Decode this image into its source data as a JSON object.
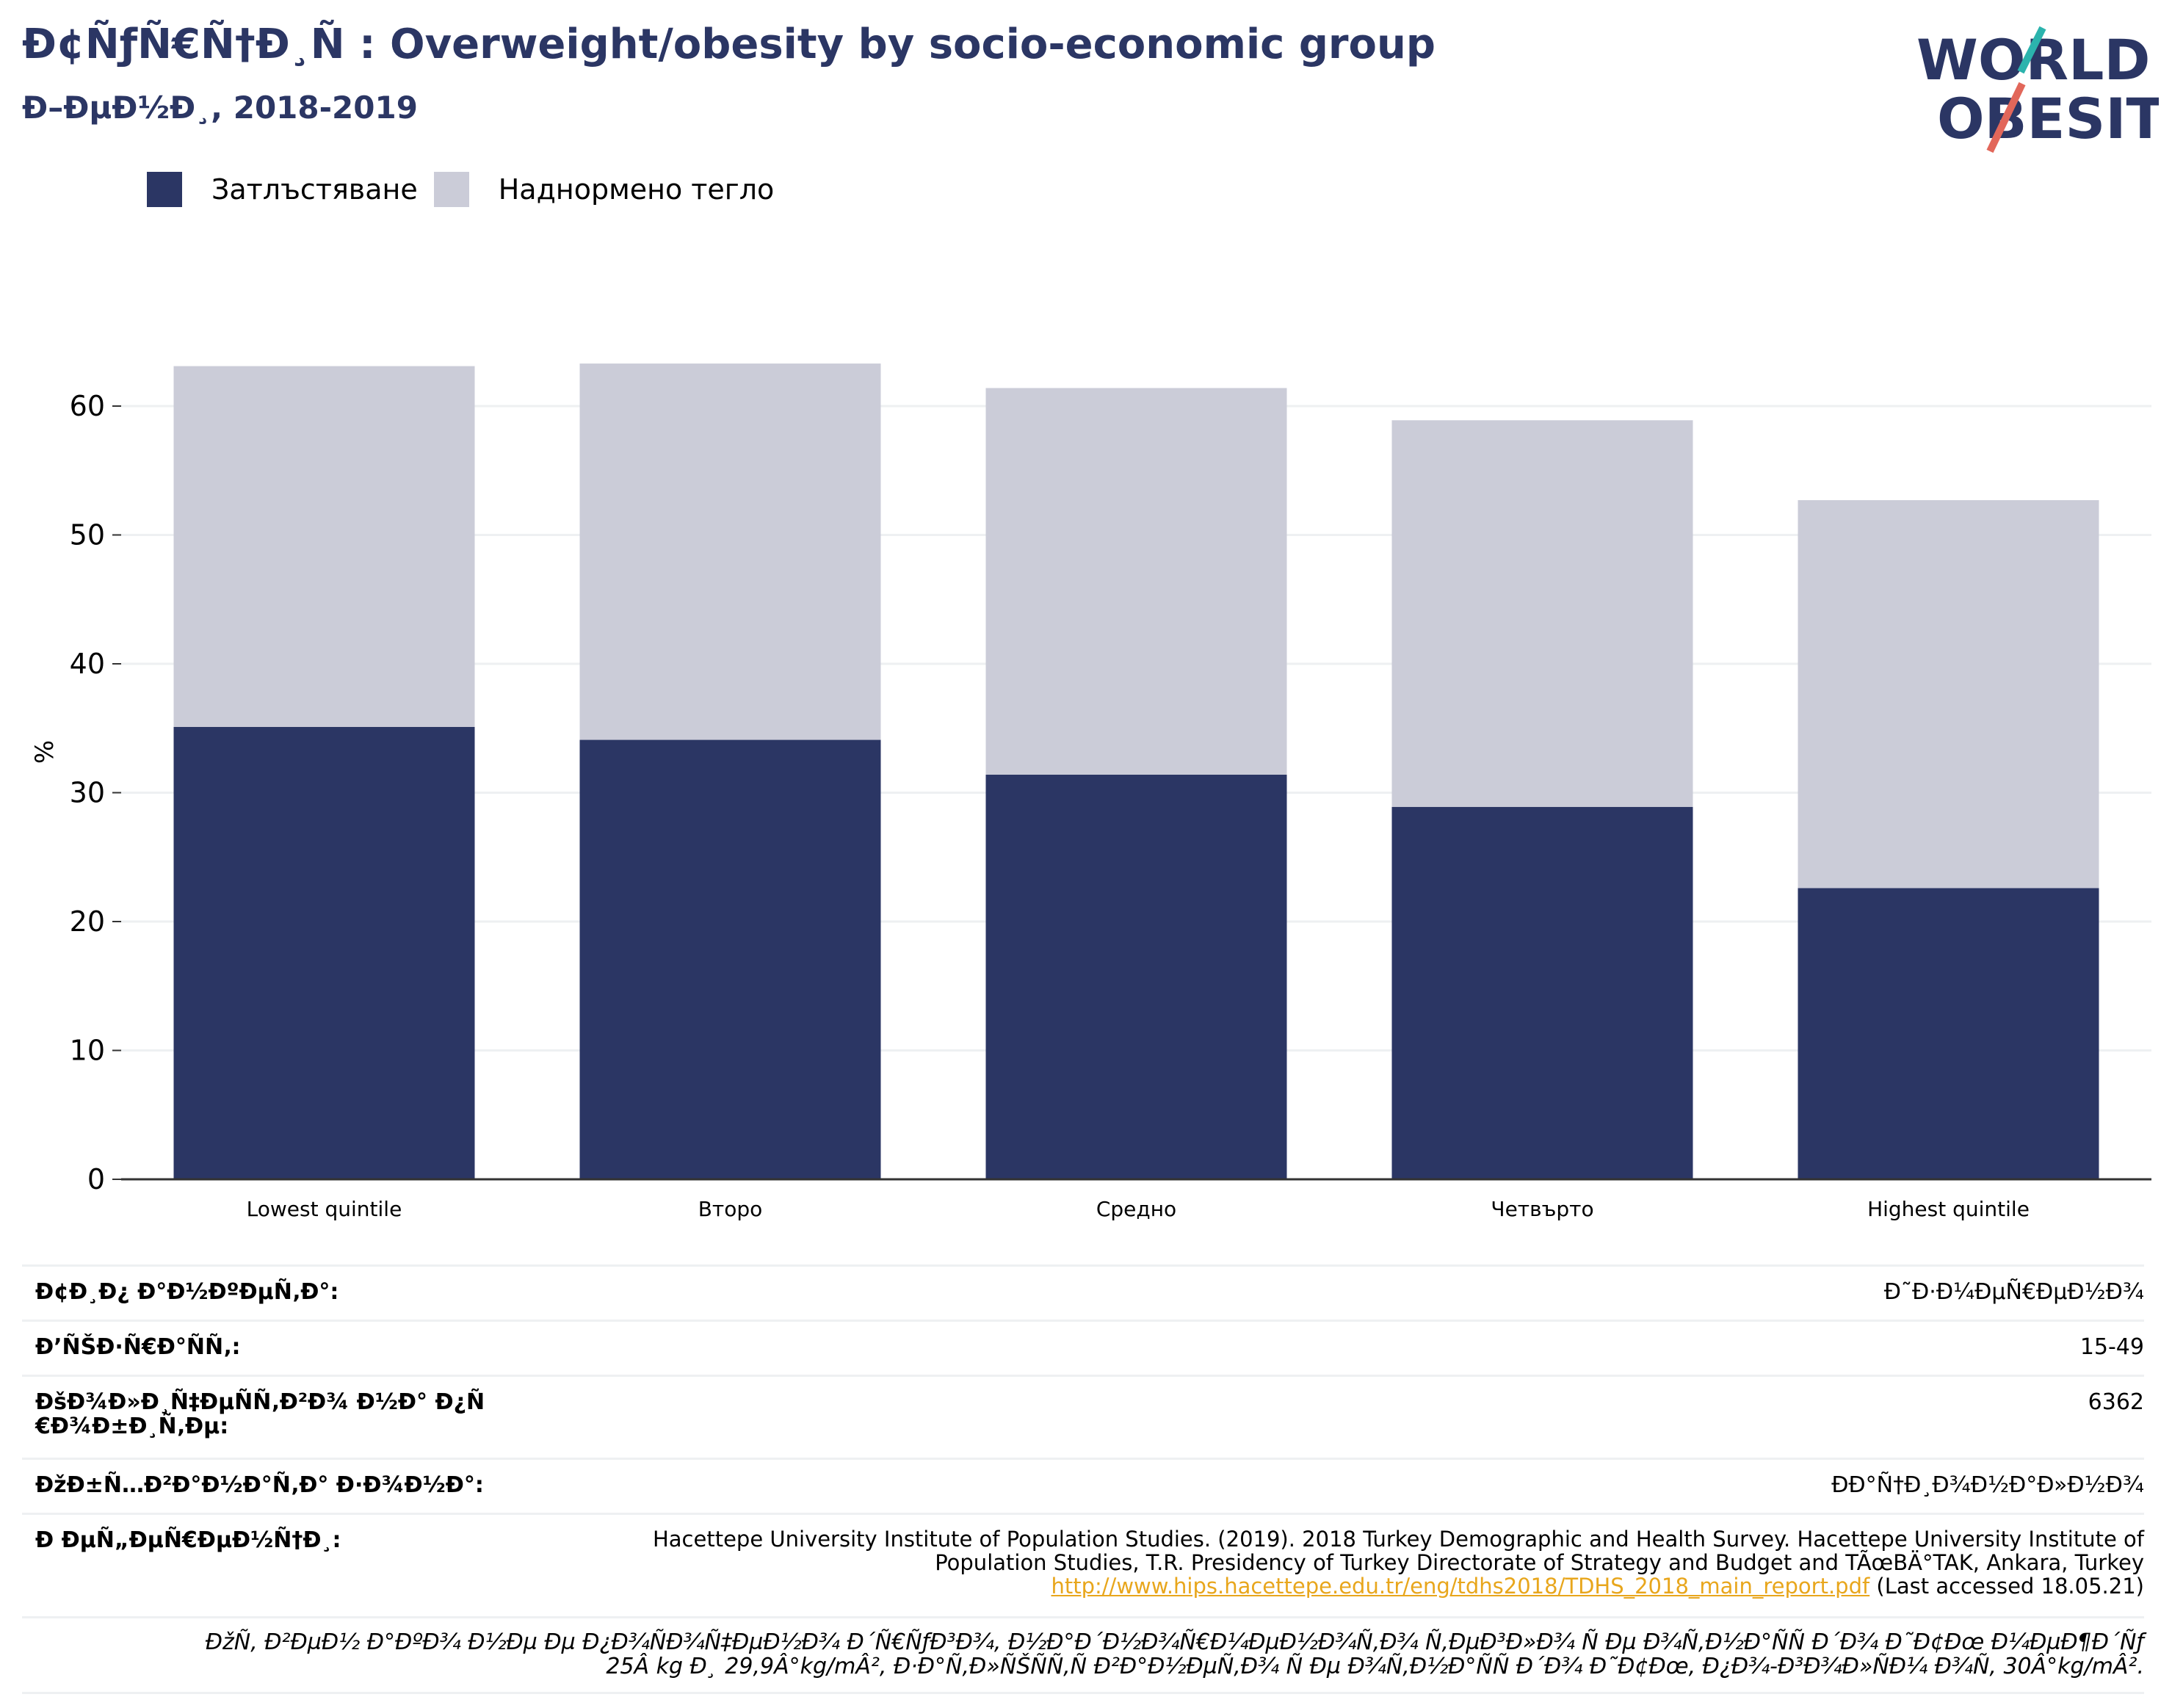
{
  "title": "Ð¢ÑƒÑ€Ñ†Ð¸Ñ : Overweight/obesity by socio-economic group",
  "subtitle": "Ð–ÐµÐ½Ð¸, 2018-2019",
  "logo": {
    "line1": "WORLD",
    "line2": "OBESITY",
    "accent_teal": "#2bb3ad",
    "accent_coral": "#e2675a",
    "text_color": "#2b3664"
  },
  "legend": [
    {
      "label": "Затлъстяване",
      "color": "#2b3664"
    },
    {
      "label": "Наднормено тегло",
      "color": "#cbccd8"
    }
  ],
  "chart_data": {
    "type": "bar",
    "stacked": true,
    "categories": [
      "Lowest quintile",
      "Второ",
      "Средно",
      "Четвърто",
      "Highest quintile"
    ],
    "series": [
      {
        "name": "Затлъстяване",
        "color": "#2b3664",
        "values": [
          35.1,
          34.1,
          31.4,
          28.9,
          22.6
        ]
      },
      {
        "name": "Наднормено тегло",
        "color": "#cbccd8",
        "values": [
          28.0,
          29.2,
          30.0,
          30.0,
          30.1
        ]
      }
    ],
    "ylabel": "%",
    "ylim": [
      0,
      64
    ],
    "yticks": [
      0,
      10,
      20,
      30,
      40,
      50,
      60
    ],
    "grid": true,
    "legend_position": "top-left"
  },
  "info": {
    "rows": [
      {
        "label": "Ð¢Ð¸Ð¿ Ð°Ð½ÐºÐµÑ‚Ð°:",
        "value": "Ð˜Ð·Ð¼ÐµÑ€ÐµÐ½Ð¾"
      },
      {
        "label": "Ð’ÑŠÐ·Ñ€Ð°ÑÑ‚:",
        "value": "15-49"
      },
      {
        "label": "ÐšÐ¾Ð»Ð¸Ñ‡ÐµÑÑ‚Ð²Ð¾ Ð½Ð° Ð¿Ñ€Ð¾Ð±Ð¸Ñ‚Ðµ:",
        "value": "6362"
      },
      {
        "label": "ÐžÐ±Ñ…Ð²Ð°Ð½Ð°Ñ‚Ð° Ð·Ð¾Ð½Ð°:",
        "value": "ÐÐ°Ñ†Ð¸Ð¾Ð½Ð°Ð»Ð½Ð¾"
      }
    ],
    "source_label": "Ð ÐµÑ„ÐµÑ€ÐµÐ½Ñ†Ð¸:",
    "source_line1": "Hacettepe University Institute of Population Studies. (2019). 2018 Turkey Demographic and Health Survey. Hacettepe University Institute of",
    "source_line2": "Population Studies, T.R. Presidency of Turkey Directorate of Strategy and Budget and TÃœBÄ°TAK, Ankara, Turkey",
    "source_link": "http://www.hips.hacettepe.edu.tr/eng/tdhs2018/TDHS_2018_main_report.pdf",
    "source_accessed": " (Last accessed 18.05.21)",
    "note_line1": "ÐžÑ‚ Ð²ÐµÐ½ Ð°ÐºÐ¾ Ð½Ðµ Ðµ Ð¿Ð¾ÑÐ¾Ñ‡ÐµÐ½Ð¾ Ð´Ñ€ÑƒÐ³Ð¾, Ð½Ð°Ð´Ð½Ð¾Ñ€Ð¼ÐµÐ½Ð¾Ñ‚Ð¾ Ñ‚ÐµÐ³Ð»Ð¾ Ñ Ðµ Ð¾Ñ‚Ð½Ð°ÑÑ Ð´Ð¾ Ð˜Ð¢Ðœ Ð¼ÐµÐ¶Ð´Ñƒ",
    "note_line2": "25Â kg Ð¸ 29,9Â°kg/mÂ², Ð·Ð°Ñ‚Ð»ÑŠÑÑ‚Ñ Ð²Ð°Ð½ÐµÑ‚Ð¾ Ñ Ðµ Ð¾Ñ‚Ð½Ð°ÑÑ Ð´Ð¾ Ð˜Ð¢Ðœ, Ð¿Ð¾-Ð³Ð¾Ð»ÑÐ¼ Ð¾Ñ‚ 30Â°kg/mÂ²."
  }
}
